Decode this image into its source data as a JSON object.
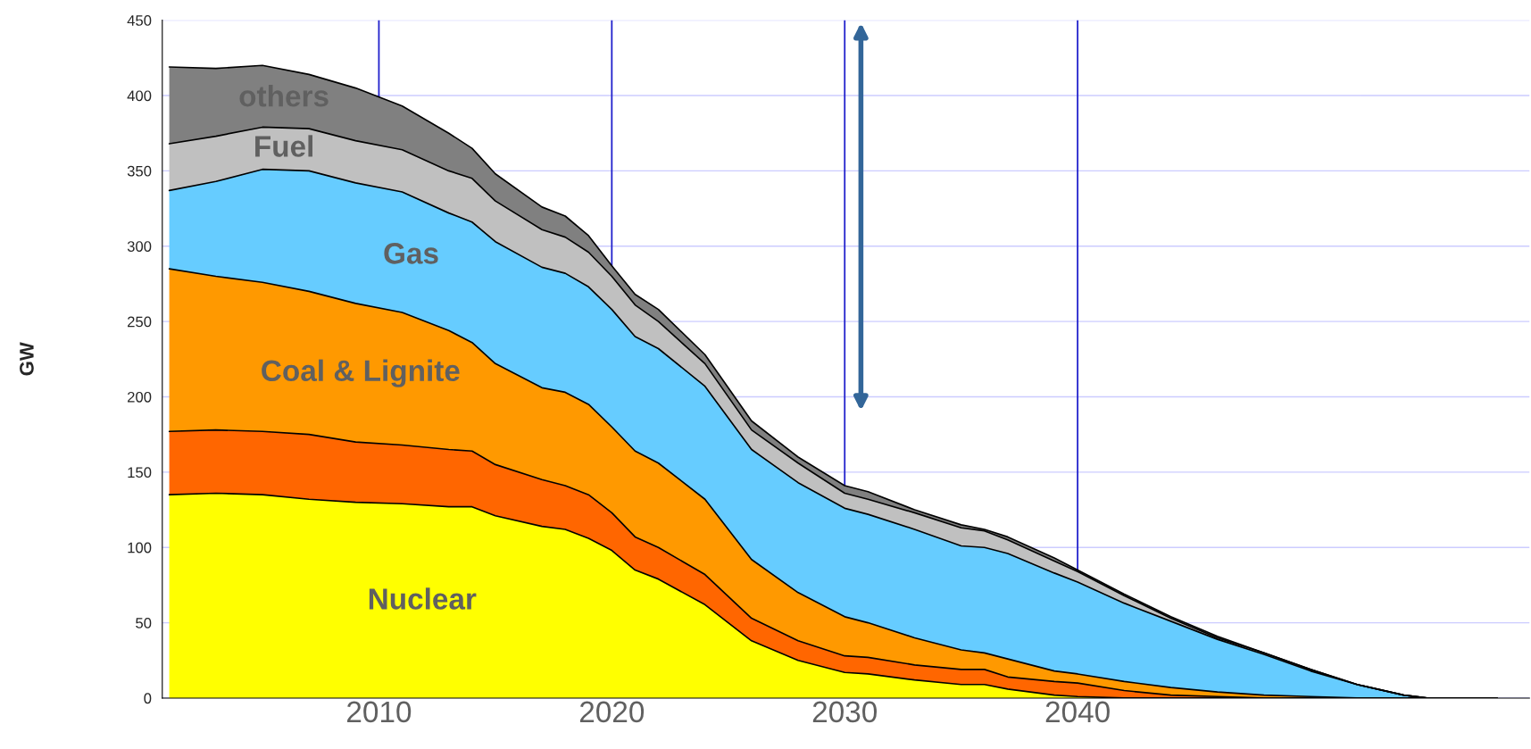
{
  "chart_data": {
    "type": "area",
    "stacked": true,
    "ylabel": "GW",
    "x": [
      2001,
      2003,
      2005,
      2007,
      2009,
      2011,
      2013,
      2014,
      2015,
      2017,
      2018,
      2019,
      2020,
      2021,
      2022,
      2024,
      2026,
      2028,
      2030,
      2031,
      2033,
      2035,
      2036,
      2037,
      2039,
      2040,
      2042,
      2044,
      2046,
      2048,
      2050,
      2052,
      2054,
      2055,
      2058
    ],
    "series": [
      {
        "name": "Nuclear",
        "color": "#ffff00",
        "values": [
          135,
          136,
          135,
          132,
          130,
          129,
          127,
          127,
          121,
          114,
          112,
          106,
          98,
          85,
          79,
          62,
          38,
          25,
          17,
          16,
          12,
          9,
          9,
          6,
          2,
          1,
          0,
          0,
          0,
          0,
          0,
          0,
          0,
          0,
          0
        ]
      },
      {
        "color": "#ff6600",
        "values": [
          42,
          42,
          42,
          43,
          40,
          39,
          38,
          37,
          34,
          31,
          29,
          29,
          25,
          22,
          21,
          20,
          15,
          13,
          11,
          11,
          10,
          10,
          10,
          8,
          9,
          9,
          5,
          2,
          1,
          0,
          0,
          0,
          0,
          0,
          0
        ]
      },
      {
        "name": "Coal & Lignite",
        "color": "#ff9900",
        "values": [
          108,
          102,
          99,
          95,
          92,
          88,
          79,
          72,
          67,
          61,
          62,
          60,
          57,
          57,
          56,
          50,
          39,
          32,
          26,
          23,
          18,
          13,
          11,
          12,
          7,
          6,
          6,
          5,
          3,
          2,
          1,
          0,
          0,
          0,
          0
        ]
      },
      {
        "name": "Gas",
        "color": "#66ccff",
        "values": [
          52,
          63,
          75,
          80,
          80,
          80,
          78,
          80,
          81,
          80,
          79,
          78,
          78,
          76,
          76,
          75,
          73,
          73,
          72,
          72,
          72,
          69,
          70,
          70,
          65,
          61,
          52,
          44,
          35,
          27,
          17,
          9,
          2,
          0,
          0
        ]
      },
      {
        "name": "Fuel",
        "color": "#c0c0c0",
        "values": [
          31,
          30,
          28,
          28,
          28,
          28,
          28,
          29,
          27,
          25,
          24,
          23,
          22,
          21,
          18,
          15,
          13,
          13,
          10,
          10,
          11,
          12,
          11,
          9,
          8,
          7,
          5,
          2,
          1,
          1,
          1,
          0,
          0,
          0,
          0
        ]
      },
      {
        "name": "others",
        "color": "#808080",
        "values": [
          51,
          45,
          41,
          36,
          35,
          29,
          25,
          20,
          18,
          15,
          14,
          11,
          7,
          7,
          8,
          6,
          6,
          4,
          5,
          5,
          2,
          2,
          1,
          2,
          2,
          1,
          1,
          1,
          1,
          0,
          0,
          0,
          0,
          0,
          0
        ]
      }
    ],
    "ref_lines": [
      {
        "axis": "x",
        "value": 2010,
        "color": "#2222cc"
      },
      {
        "axis": "x",
        "value": 2020,
        "color": "#2222cc"
      },
      {
        "axis": "x",
        "value": 2030,
        "color": "#2222cc"
      },
      {
        "axis": "x",
        "value": 2040,
        "color": "#2222cc"
      }
    ],
    "xlim": [
      2000.7,
      2059.4
    ],
    "ylim": [
      0,
      450
    ],
    "xticks": [
      2010,
      2020,
      2030,
      2040
    ],
    "yticks": [
      0,
      50,
      100,
      150,
      200,
      250,
      300,
      350,
      400,
      450
    ],
    "grid": "y",
    "legend": false
  }
}
